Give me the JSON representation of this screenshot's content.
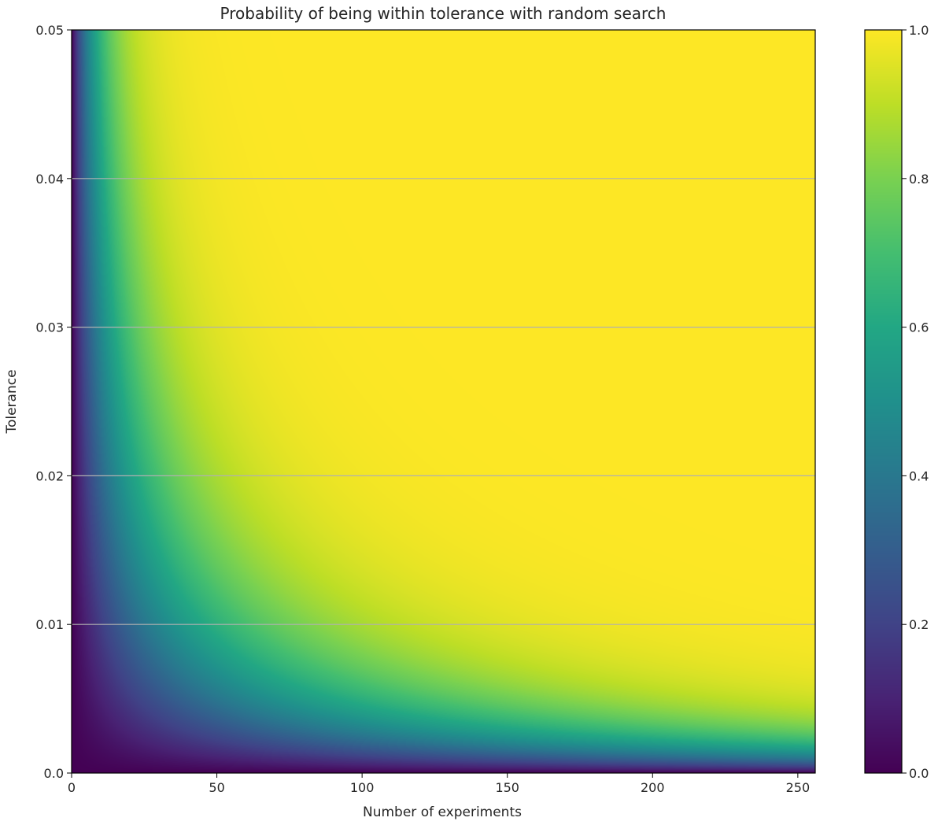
{
  "chart_data": {
    "type": "heatmap",
    "title": "Probability of being within tolerance with random search",
    "xlabel": "Number of experiments",
    "ylabel": "Tolerance",
    "xlim": [
      0,
      256
    ],
    "ylim": [
      0,
      0.05
    ],
    "x_ticks": [
      0,
      50,
      100,
      150,
      200,
      250
    ],
    "x_tick_labels": [
      "0",
      "50",
      "100",
      "150",
      "200",
      "250"
    ],
    "y_ticks": [
      0,
      0.01,
      0.02,
      0.03,
      0.04,
      0.05
    ],
    "y_tick_labels": [
      "0.0",
      "0.01",
      "0.02",
      "0.03",
      "0.04",
      "0.05"
    ],
    "grid": "horizontal",
    "colormap": "viridis",
    "colorbar": {
      "range": [
        0,
        1
      ],
      "ticks": [
        0,
        0.2,
        0.4,
        0.6,
        0.8,
        1.0
      ],
      "tick_labels": [
        "0.0",
        "0.2",
        "0.4",
        "0.6",
        "0.8",
        "1.0"
      ]
    },
    "value_function": "p = 1 - (1 - 2*tolerance)^experiments",
    "grid_color": "#b0b0b0"
  }
}
